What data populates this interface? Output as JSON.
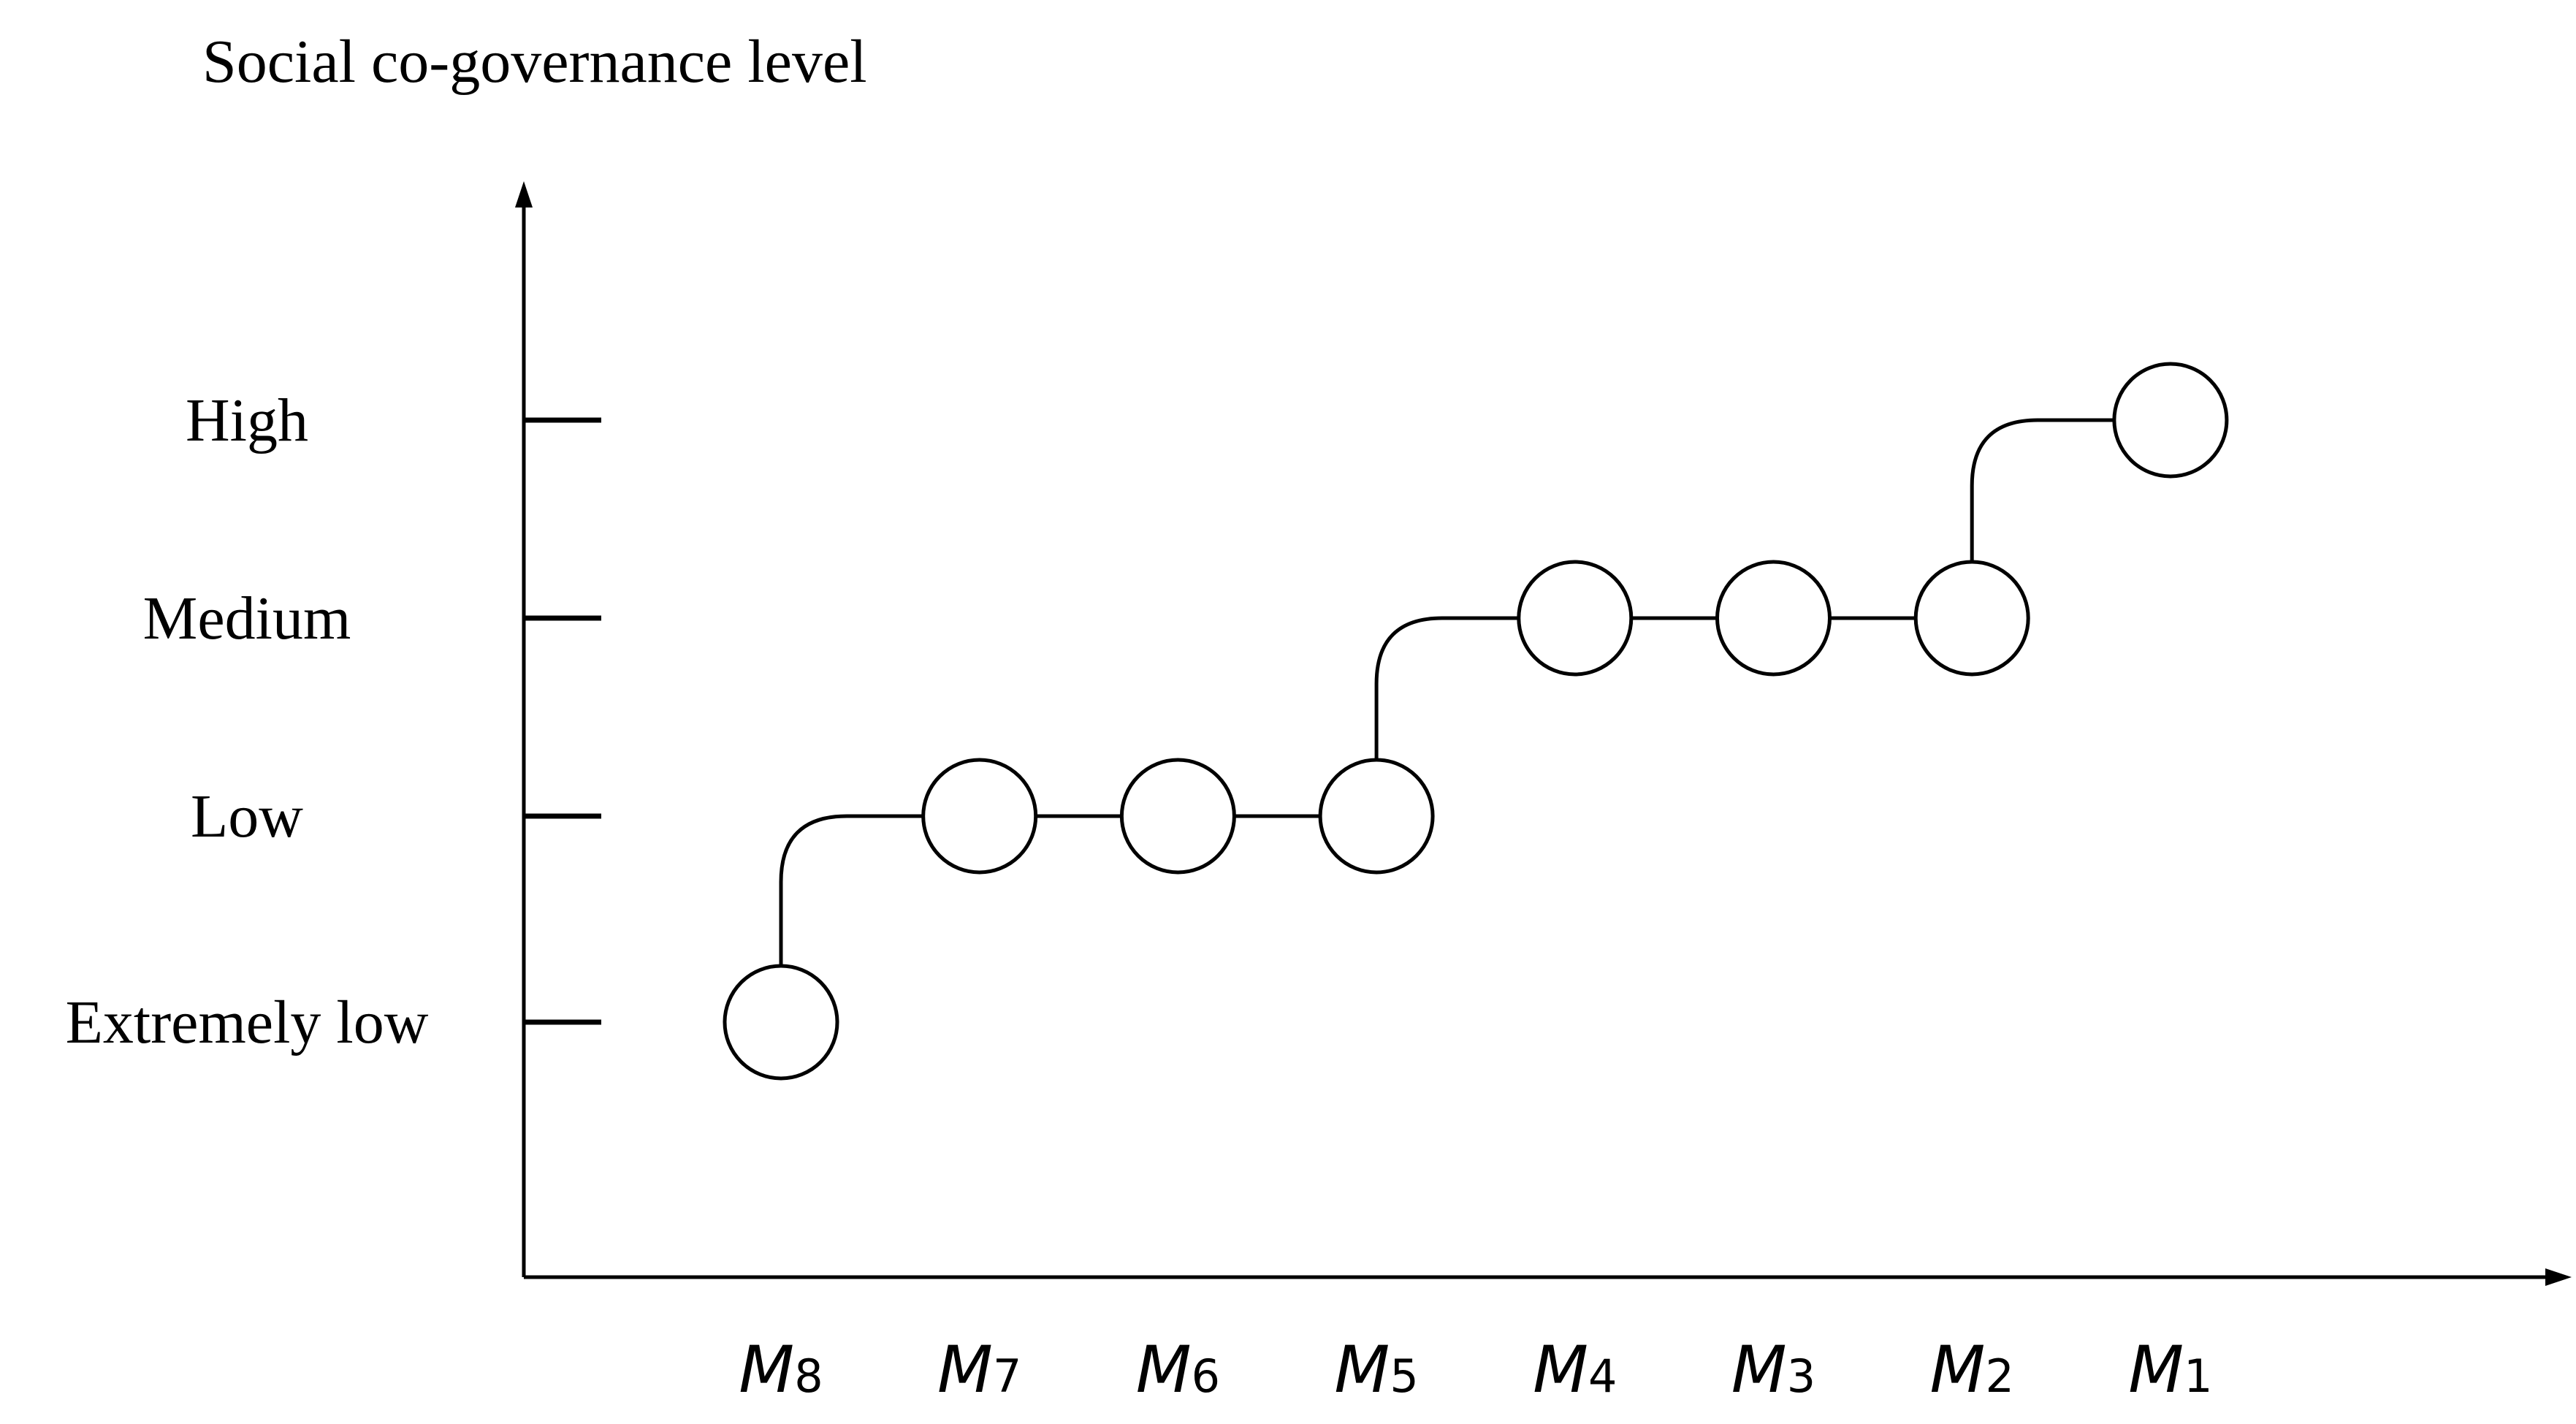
{
  "chart_data": {
    "type": "step",
    "title": "Social co-governance level",
    "categories": [
      "M8",
      "M7",
      "M6",
      "M5",
      "M4",
      "M3",
      "M2",
      "M1"
    ],
    "y_categories": [
      "Extremely low",
      "Low",
      "Medium",
      "High"
    ],
    "values": [
      "Extremely low",
      "Low",
      "Low",
      "Low",
      "Medium",
      "Medium",
      "Medium",
      "High"
    ],
    "color": "#000000"
  }
}
